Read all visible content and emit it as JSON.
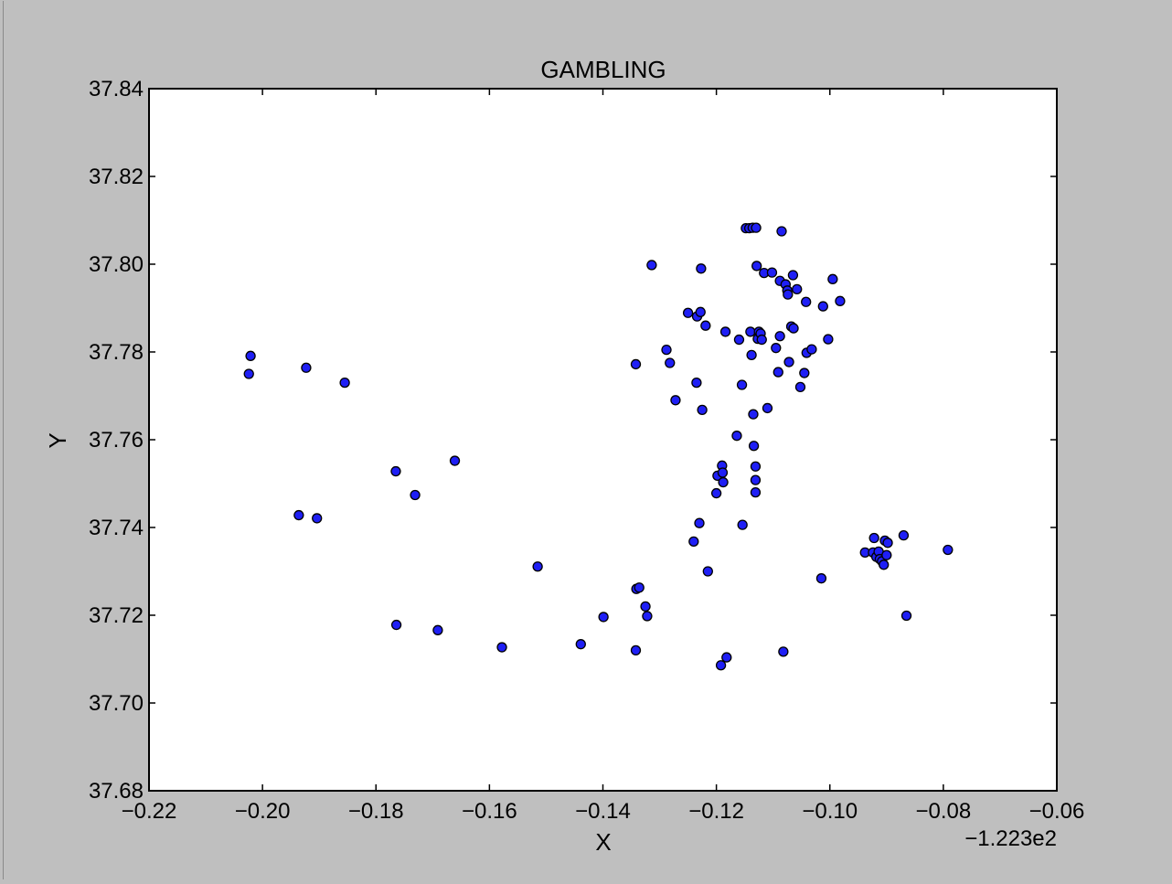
{
  "chart_data": {
    "type": "scatter",
    "title": "GAMBLING",
    "xlabel": "X",
    "ylabel": "Y",
    "x_offset_label": "−1.223e2",
    "xlim": [
      -0.22,
      -0.06
    ],
    "ylim": [
      37.68,
      37.84
    ],
    "xticks": [
      -0.22,
      -0.2,
      -0.18,
      -0.16,
      -0.14,
      -0.12,
      -0.1,
      -0.08,
      -0.06
    ],
    "xtick_labels": [
      "−0.22",
      "−0.20",
      "−0.18",
      "−0.16",
      "−0.14",
      "−0.12",
      "−0.10",
      "−0.08",
      "−0.06"
    ],
    "yticks": [
      37.68,
      37.7,
      37.72,
      37.74,
      37.76,
      37.78,
      37.8,
      37.82,
      37.84
    ],
    "ytick_labels": [
      "37.68",
      "37.70",
      "37.72",
      "37.74",
      "37.76",
      "37.78",
      "37.80",
      "37.82",
      "37.84"
    ],
    "grid": false,
    "marker_color": "#1f1ff5",
    "marker_edge": "#000000",
    "points": [
      [
        -0.2021,
        37.7791
      ],
      [
        -0.2024,
        37.775
      ],
      [
        -0.1923,
        37.7764
      ],
      [
        -0.1855,
        37.773
      ],
      [
        -0.1936,
        37.7428
      ],
      [
        -0.1904,
        37.7421
      ],
      [
        -0.1765,
        37.7528
      ],
      [
        -0.1731,
        37.7474
      ],
      [
        -0.1661,
        37.7552
      ],
      [
        -0.1764,
        37.7178
      ],
      [
        -0.1691,
        37.7166
      ],
      [
        -0.1578,
        37.7127
      ],
      [
        -0.1515,
        37.7311
      ],
      [
        -0.1439,
        37.7134
      ],
      [
        -0.1399,
        37.7196
      ],
      [
        -0.1342,
        37.712
      ],
      [
        -0.1341,
        37.726
      ],
      [
        -0.1336,
        37.7263
      ],
      [
        -0.1325,
        37.722
      ],
      [
        -0.1322,
        37.7198
      ],
      [
        -0.1342,
        37.7772
      ],
      [
        -0.1314,
        37.7998
      ],
      [
        -0.1288,
        37.7805
      ],
      [
        -0.1282,
        37.7775
      ],
      [
        -0.1272,
        37.769
      ],
      [
        -0.125,
        37.7889
      ],
      [
        -0.124,
        37.7368
      ],
      [
        -0.1235,
        37.773
      ],
      [
        -0.1234,
        37.7881
      ],
      [
        -0.123,
        37.741
      ],
      [
        -0.1228,
        37.7891
      ],
      [
        -0.1227,
        37.799
      ],
      [
        -0.1225,
        37.7668
      ],
      [
        -0.1219,
        37.786
      ],
      [
        -0.1215,
        37.73
      ],
      [
        -0.12,
        37.7478
      ],
      [
        -0.1198,
        37.7518
      ],
      [
        -0.1192,
        37.7086
      ],
      [
        -0.119,
        37.7541
      ],
      [
        -0.1189,
        37.7525
      ],
      [
        -0.1188,
        37.7503
      ],
      [
        -0.1184,
        37.7846
      ],
      [
        -0.1182,
        37.7104
      ],
      [
        -0.1164,
        37.7609
      ],
      [
        -0.116,
        37.7828
      ],
      [
        -0.1155,
        37.7725
      ],
      [
        -0.1154,
        37.7406
      ],
      [
        -0.1148,
        37.8082
      ],
      [
        -0.1142,
        37.8082
      ],
      [
        -0.114,
        37.7846
      ],
      [
        -0.1138,
        37.7793
      ],
      [
        -0.1136,
        37.8083
      ],
      [
        -0.1135,
        37.7658
      ],
      [
        -0.1134,
        37.7586
      ],
      [
        -0.1131,
        37.7539
      ],
      [
        -0.1131,
        37.7508
      ],
      [
        -0.1131,
        37.748
      ],
      [
        -0.113,
        37.8083
      ],
      [
        -0.1129,
        37.7996
      ],
      [
        -0.1127,
        37.783
      ],
      [
        -0.1125,
        37.7846
      ],
      [
        -0.1122,
        37.7842
      ],
      [
        -0.112,
        37.7828
      ],
      [
        -0.1116,
        37.798
      ],
      [
        -0.111,
        37.7672
      ],
      [
        -0.1102,
        37.7981
      ],
      [
        -0.1095,
        37.7809
      ],
      [
        -0.1091,
        37.7754
      ],
      [
        -0.1088,
        37.7962
      ],
      [
        -0.1088,
        37.7836
      ],
      [
        -0.1085,
        37.8075
      ],
      [
        -0.1082,
        37.7117
      ],
      [
        -0.1078,
        37.7954
      ],
      [
        -0.1075,
        37.794
      ],
      [
        -0.1074,
        37.7931
      ],
      [
        -0.1072,
        37.7777
      ],
      [
        -0.1068,
        37.7858
      ],
      [
        -0.1065,
        37.7975
      ],
      [
        -0.1064,
        37.7854
      ],
      [
        -0.1058,
        37.7943
      ],
      [
        -0.1052,
        37.772
      ],
      [
        -0.1045,
        37.7752
      ],
      [
        -0.1042,
        37.7914
      ],
      [
        -0.1041,
        37.7798
      ],
      [
        -0.1032,
        37.7806
      ],
      [
        -0.1015,
        37.7284
      ],
      [
        -0.1012,
        37.7904
      ],
      [
        -0.1003,
        37.7829
      ],
      [
        -0.0995,
        37.7966
      ],
      [
        -0.0982,
        37.7916
      ],
      [
        -0.0938,
        37.7343
      ],
      [
        -0.0924,
        37.7343
      ],
      [
        -0.0922,
        37.7376
      ],
      [
        -0.0918,
        37.7333
      ],
      [
        -0.0914,
        37.7345
      ],
      [
        -0.0912,
        37.7328
      ],
      [
        -0.0908,
        37.7323
      ],
      [
        -0.0905,
        37.7315
      ],
      [
        -0.0903,
        37.737
      ],
      [
        -0.09,
        37.7337
      ],
      [
        -0.0898,
        37.7365
      ],
      [
        -0.087,
        37.7382
      ],
      [
        -0.0865,
        37.7199
      ],
      [
        -0.0792,
        37.7349
      ]
    ]
  }
}
